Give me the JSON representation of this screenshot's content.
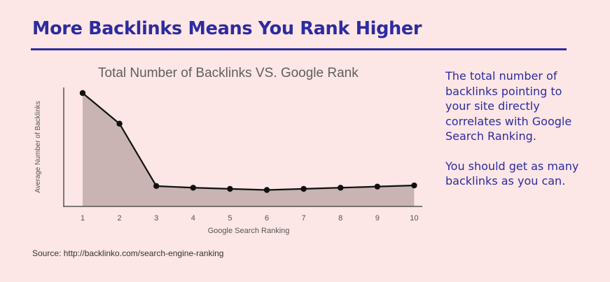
{
  "header": {
    "headline": "More Backlinks Means You Rank Higher"
  },
  "chart_data": {
    "type": "area",
    "title": "Total Number of Backlinks VS. Google Rank",
    "xlabel": "Google Search Ranking",
    "ylabel": "Average Number of Backlinks",
    "x": [
      1,
      2,
      3,
      4,
      5,
      6,
      7,
      8,
      9,
      10
    ],
    "tick_labels": [
      "1",
      "2",
      "3",
      "4",
      "5",
      "6",
      "7",
      "8",
      "9",
      "10"
    ],
    "values": [
      100,
      73,
      18,
      16.5,
      15.5,
      14.5,
      15.5,
      16.5,
      17.5,
      18.5
    ],
    "ylim": [
      0,
      100
    ],
    "grid": false,
    "legend": "none",
    "colors": {
      "line": "#111111",
      "fill": "#c9b3b3",
      "axis": "#555555"
    }
  },
  "side_text": {
    "paragraph1": "The total number of backlinks pointing to your site directly correlates with Google Search Ranking.",
    "paragraph2": "You should get as many backlinks as you can."
  },
  "footer": {
    "source": "Source: http://backlinko.com/search-engine-ranking"
  },
  "colors": {
    "background": "#fde6e6",
    "brand": "#2c2ca0"
  }
}
